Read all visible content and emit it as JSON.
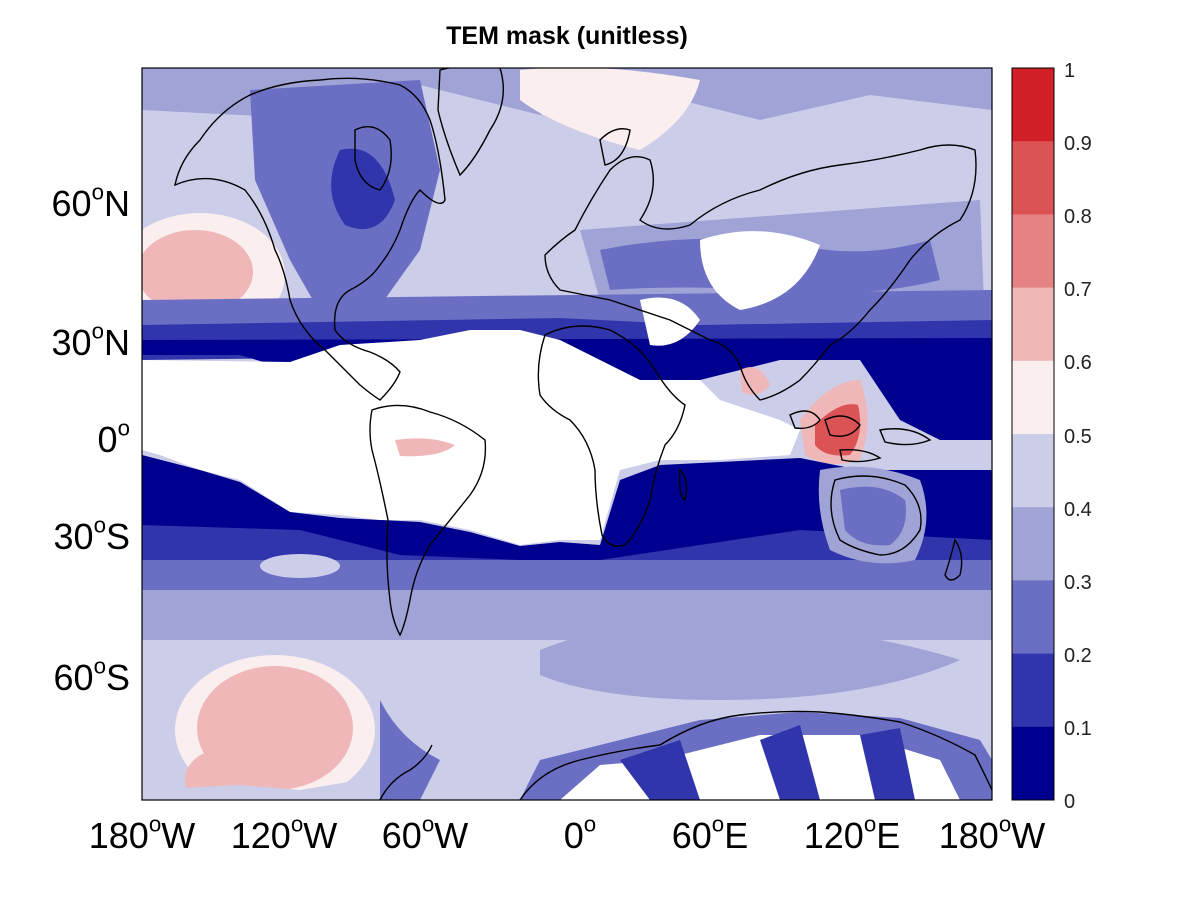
{
  "map": {
    "title": "TEM mask (unitless)",
    "y_ticks": [
      {
        "value": "60",
        "sup": "o",
        "hemi": "N"
      },
      {
        "value": "30",
        "sup": "o",
        "hemi": "N"
      },
      {
        "value": "0",
        "sup": "o",
        "hemi": ""
      },
      {
        "value": "30",
        "sup": "o",
        "hemi": "S"
      },
      {
        "value": "60",
        "sup": "o",
        "hemi": "S"
      }
    ],
    "x_ticks": [
      {
        "value": "180",
        "sup": "o",
        "hemi": "W"
      },
      {
        "value": "120",
        "sup": "o",
        "hemi": "W"
      },
      {
        "value": "60",
        "sup": "o",
        "hemi": "W"
      },
      {
        "value": "0",
        "sup": "o",
        "hemi": ""
      },
      {
        "value": "60",
        "sup": "o",
        "hemi": "E"
      },
      {
        "value": "120",
        "sup": "o",
        "hemi": "E"
      },
      {
        "value": "180",
        "sup": "o",
        "hemi": "W"
      }
    ],
    "colorbar": {
      "labels": [
        "1",
        "0.9",
        "0.8",
        "0.7",
        "0.6",
        "0.5",
        "0.4",
        "0.3",
        "0.2",
        "0.1",
        "0"
      ],
      "colors_top_to_bottom": [
        "#d12027",
        "#dc5356",
        "#e58384",
        "#efb7b7",
        "#fbeeee",
        "#cbcde9",
        "#a0a3d6",
        "#6b6fc3",
        "#3035ab",
        "#00008f"
      ]
    },
    "colors": {
      "ocean_low": "#00008f",
      "land_white": "#ffffff",
      "coastline": "#000000"
    }
  }
}
